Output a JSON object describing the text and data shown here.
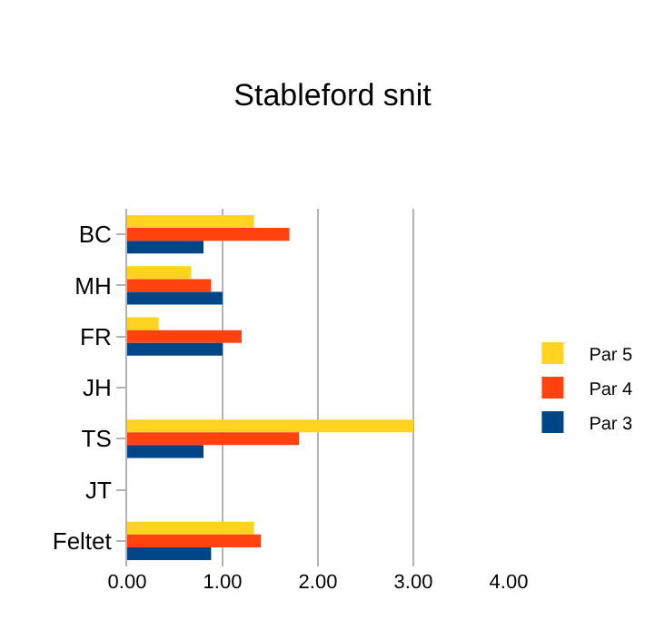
{
  "chart_data": {
    "type": "bar",
    "orientation": "horizontal",
    "title": "Stableford snit",
    "categories": [
      "BC",
      "MH",
      "FR",
      "JH",
      "TS",
      "JT",
      "Feltet"
    ],
    "series": [
      {
        "name": "Par 5",
        "color": "#ffd320",
        "values": [
          1.33,
          0.67,
          0.33,
          0,
          3.0,
          0,
          1.33
        ]
      },
      {
        "name": "Par 4",
        "color": "#ff420e",
        "values": [
          1.7,
          0.88,
          1.2,
          0,
          1.8,
          0,
          1.4
        ]
      },
      {
        "name": "Par 3",
        "color": "#004586",
        "values": [
          0.8,
          1.0,
          1.0,
          0,
          0.8,
          0,
          0.88
        ]
      }
    ],
    "xlim": [
      0,
      4
    ],
    "xticks": [
      {
        "value": 0,
        "label": "0.00"
      },
      {
        "value": 1,
        "label": "1.00"
      },
      {
        "value": 2,
        "label": "2.00"
      },
      {
        "value": 3,
        "label": "3.00"
      },
      {
        "value": 4,
        "label": "4.00"
      }
    ],
    "grid": "x",
    "legend": "right"
  }
}
